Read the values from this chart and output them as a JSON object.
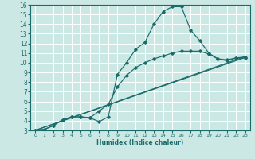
{
  "xlabel": "Humidex (Indice chaleur)",
  "bg_color": "#cce8e4",
  "grid_color": "#ffffff",
  "line_color": "#1a6b6b",
  "xlim": [
    -0.5,
    23.5
  ],
  "ylim": [
    3,
    16
  ],
  "yticks": [
    3,
    4,
    5,
    6,
    7,
    8,
    9,
    10,
    11,
    12,
    13,
    14,
    15,
    16
  ],
  "xticks": [
    0,
    1,
    2,
    3,
    4,
    5,
    6,
    7,
    8,
    9,
    10,
    11,
    12,
    13,
    14,
    15,
    16,
    17,
    18,
    19,
    20,
    21,
    22,
    23
  ],
  "line1_x": [
    0,
    1,
    2,
    3,
    4,
    5,
    6,
    7,
    8,
    9,
    10,
    11,
    12,
    13,
    14,
    15,
    16,
    17,
    18,
    19,
    20,
    21,
    22,
    23
  ],
  "line1_y": [
    3,
    3.1,
    3.5,
    4.1,
    4.4,
    4.4,
    4.3,
    3.9,
    4.4,
    8.8,
    10.0,
    11.4,
    12.1,
    14.0,
    15.3,
    15.8,
    15.8,
    13.4,
    12.3,
    11.0,
    10.4,
    10.2,
    10.5,
    10.5
  ],
  "line2_x": [
    0,
    1,
    2,
    3,
    4,
    5,
    6,
    7,
    8,
    9,
    10,
    11,
    12,
    13,
    14,
    15,
    16,
    17,
    18,
    19,
    20,
    21,
    22,
    23
  ],
  "line2_y": [
    3.0,
    3.1,
    3.5,
    4.1,
    4.4,
    4.4,
    4.3,
    5.0,
    5.7,
    7.5,
    8.7,
    9.5,
    10.0,
    10.4,
    10.7,
    11.0,
    11.2,
    11.2,
    11.2,
    10.9,
    10.4,
    10.3,
    10.5,
    10.6
  ],
  "line3_x": [
    0,
    23
  ],
  "line3_y": [
    3.0,
    10.55
  ],
  "line4_x": [
    0,
    23
  ],
  "line4_y": [
    3.0,
    10.65
  ]
}
